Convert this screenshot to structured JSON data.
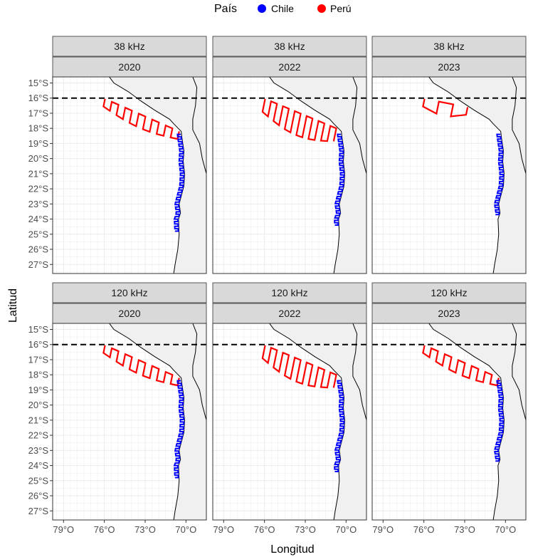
{
  "chart_data": {
    "type": "map",
    "legend": {
      "title": "País",
      "position": "top",
      "entries": [
        {
          "label": "Chile",
          "color": "#0000ff"
        },
        {
          "label": "Perú",
          "color": "#ff0000"
        }
      ]
    },
    "xlabel": "Longitud",
    "ylabel": "Latitud",
    "xlim": [
      -79.8,
      -68.5
    ],
    "ylim": [
      -27.6,
      -14.6
    ],
    "xticks": [
      {
        "value": -79,
        "label": "79°O"
      },
      {
        "value": -76,
        "label": "76°O"
      },
      {
        "value": -73,
        "label": "73°O"
      },
      {
        "value": -70,
        "label": "70°O"
      }
    ],
    "yticks": [
      {
        "value": -15,
        "label": "15°S"
      },
      {
        "value": -16,
        "label": "16°S"
      },
      {
        "value": -17,
        "label": "17°S"
      },
      {
        "value": -18,
        "label": "18°S"
      },
      {
        "value": -19,
        "label": "19°S"
      },
      {
        "value": -20,
        "label": "20°S"
      },
      {
        "value": -21,
        "label": "21°S"
      },
      {
        "value": -22,
        "label": "22°S"
      },
      {
        "value": -23,
        "label": "23°S"
      },
      {
        "value": -24,
        "label": "24°S"
      },
      {
        "value": -25,
        "label": "25°S"
      },
      {
        "value": -26,
        "label": "26°S"
      },
      {
        "value": -27,
        "label": "27°S"
      }
    ],
    "grid": true,
    "reference_line": {
      "latitude": -16,
      "style": "dashed",
      "color": "#000000"
    },
    "facets": [
      {
        "freq": "38 kHz",
        "year": "2020",
        "peru": {
          "north": -16.0,
          "south": -18.2,
          "extent": 1.0,
          "n_transects": 12
        },
        "chile": {
          "north": -18.4,
          "south": -24.8,
          "n_transects": 40,
          "extent": 0.25
        }
      },
      {
        "freq": "38 kHz",
        "year": "2022",
        "peru": {
          "north": -16.0,
          "south": -18.0,
          "extent": 1.7,
          "n_transects": 13
        },
        "chile": {
          "north": -18.4,
          "south": -24.4,
          "n_transects": 38,
          "extent": 0.25
        }
      },
      {
        "freq": "38 kHz",
        "year": "2023",
        "peru": {
          "north": -16.0,
          "south": -16.6,
          "extent": 1.0,
          "n_transects": 4
        },
        "chile": {
          "north": -18.4,
          "south": -23.7,
          "n_transects": 34,
          "extent": 0.25
        }
      },
      {
        "freq": "120 kHz",
        "year": "2020",
        "peru": {
          "north": -16.0,
          "south": -18.2,
          "extent": 1.0,
          "n_transects": 12
        },
        "chile": {
          "north": -18.4,
          "south": -24.8,
          "n_transects": 40,
          "extent": 0.25
        }
      },
      {
        "freq": "120 kHz",
        "year": "2022",
        "peru": {
          "north": -16.0,
          "south": -18.0,
          "extent": 1.7,
          "n_transects": 13
        },
        "chile": {
          "north": -18.4,
          "south": -24.4,
          "n_transects": 38,
          "extent": 0.25
        }
      },
      {
        "freq": "120 kHz",
        "year": "2023",
        "peru": {
          "north": -16.0,
          "south": -18.2,
          "extent": 1.0,
          "n_transects": 12
        },
        "chile": {
          "north": -18.4,
          "south": -23.7,
          "n_transects": 34,
          "extent": 0.25
        }
      }
    ],
    "coastline": [
      [
        -75.3,
        -15.0
      ],
      [
        -74.2,
        -15.6
      ],
      [
        -73.3,
        -16.2
      ],
      [
        -72.3,
        -16.8
      ],
      [
        -71.2,
        -17.4
      ],
      [
        -70.9,
        -17.7
      ],
      [
        -70.35,
        -18.2
      ],
      [
        -70.3,
        -18.6
      ],
      [
        -70.15,
        -19.5
      ],
      [
        -70.2,
        -20.2
      ],
      [
        -70.1,
        -21.0
      ],
      [
        -70.15,
        -21.8
      ],
      [
        -70.5,
        -23.0
      ],
      [
        -70.4,
        -23.6
      ],
      [
        -70.55,
        -24.0
      ],
      [
        -70.5,
        -25.0
      ],
      [
        -70.6,
        -26.0
      ],
      [
        -70.8,
        -27.0
      ],
      [
        -70.9,
        -27.6
      ]
    ],
    "border": [
      [
        -69.5,
        -14.6
      ],
      [
        -69.2,
        -15.3
      ],
      [
        -69.3,
        -16.5
      ],
      [
        -69.5,
        -17.4
      ],
      [
        -69.5,
        -18.1
      ],
      [
        -69.0,
        -19.0
      ],
      [
        -68.8,
        -20.0
      ],
      [
        -68.5,
        -21.0
      ]
    ]
  }
}
